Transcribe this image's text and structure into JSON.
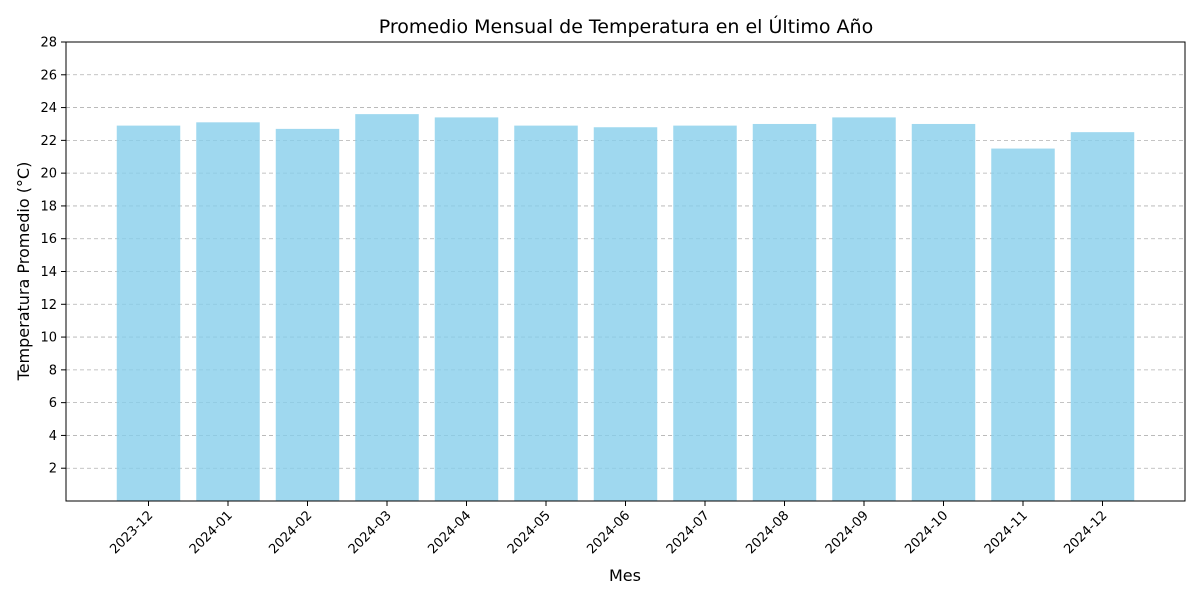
{
  "chart_data": {
    "type": "bar",
    "title": "Promedio Mensual de Temperatura en el Último Año",
    "xlabel": "Mes",
    "ylabel": "Temperatura Promedio (°C)",
    "categories": [
      "2023-12",
      "2024-01",
      "2024-02",
      "2024-03",
      "2024-04",
      "2024-05",
      "2024-06",
      "2024-07",
      "2024-08",
      "2024-09",
      "2024-10",
      "2024-11",
      "2024-12"
    ],
    "values": [
      22.9,
      23.1,
      22.7,
      23.6,
      23.4,
      22.9,
      22.8,
      22.9,
      23.0,
      23.4,
      23.0,
      21.5,
      22.5
    ],
    "ylim": [
      0,
      28
    ],
    "yticks": [
      2,
      4,
      6,
      8,
      10,
      12,
      14,
      16,
      18,
      20,
      22,
      24,
      26,
      28
    ],
    "grid": "y-dashed",
    "colors": {
      "bar": "#87CEEB",
      "grid": "#b0b0b0",
      "axis": "#000000"
    }
  }
}
